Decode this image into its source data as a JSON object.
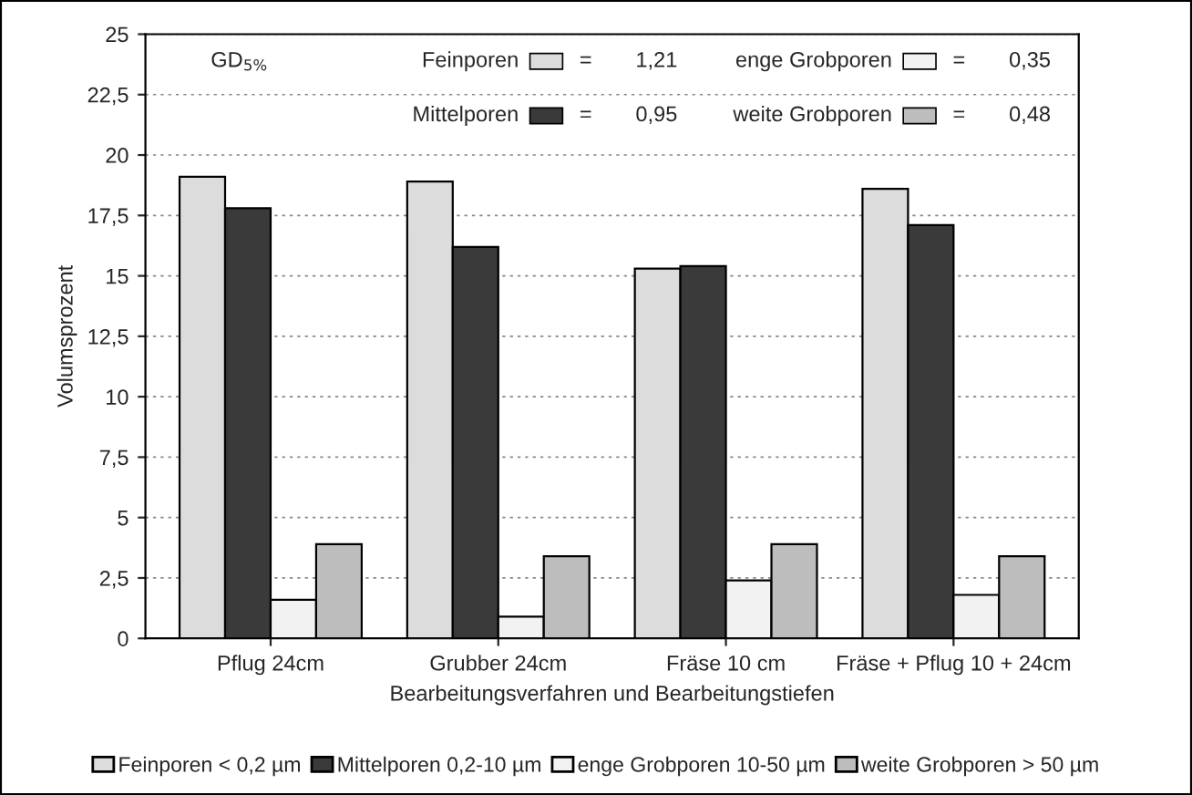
{
  "chart_data": {
    "type": "bar",
    "xlabel": "Bearbeitungsverfahren und Bearbeitungstiefen",
    "ylabel": "Volumsprozent",
    "categories": [
      "Pflug 24cm",
      "Grubber 24cm",
      "Fräse 10 cm",
      "Fräse + Pflug 10 + 24cm"
    ],
    "series": [
      {
        "name": "Feinporen < 0,2 µm",
        "color": "#dcdcdc",
        "values": [
          19.1,
          18.9,
          15.3,
          18.6
        ]
      },
      {
        "name": "Mittelporen 0,2-10 µm",
        "color": "#3a3a3a",
        "values": [
          17.8,
          16.2,
          15.4,
          17.1
        ]
      },
      {
        "name": "enge Grobporen 10-50 µm",
        "color": "#f2f2f2",
        "values": [
          1.6,
          0.9,
          2.4,
          1.8
        ]
      },
      {
        "name": "weite Grobporen > 50 µm",
        "color": "#bdbdbd",
        "values": [
          3.9,
          3.4,
          3.9,
          3.4
        ]
      }
    ],
    "ylim": [
      0,
      25
    ],
    "yticks": [
      0,
      {
        "value": 2.5,
        "label": "2,5"
      },
      5,
      {
        "value": 7.5,
        "label": "7,5"
      },
      10,
      {
        "value": 12.5,
        "label": "12,5"
      },
      15,
      {
        "value": 17.5,
        "label": "17,5"
      },
      20,
      {
        "value": 22.5,
        "label": "22,5"
      },
      25
    ],
    "grid": "y",
    "legend": "bottom",
    "annotations": [
      "GD$_{5%}$",
      "Feinporen",
      "=",
      "1,21",
      "enge Grobporen",
      "=",
      "0,35",
      "Mittelporen",
      "=",
      "0,95",
      "weite Grobporen",
      "=",
      "0,48"
    ]
  }
}
